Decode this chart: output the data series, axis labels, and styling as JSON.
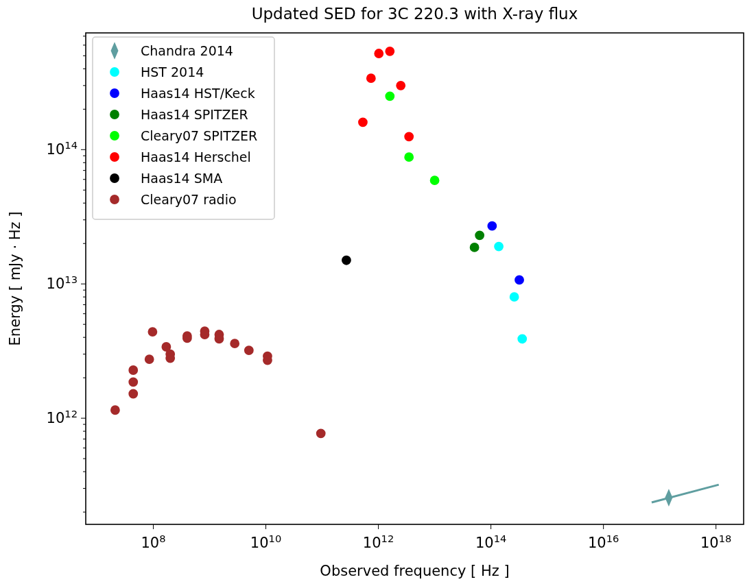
{
  "chart_data": {
    "type": "scatter",
    "title": "Updated SED for 3C 220.3 with X-ray flux",
    "xlabel": "Observed frequency [ Hz ]",
    "ylabel": "Energy [ mJy · Hz ]",
    "log": "xy",
    "grid": false,
    "legend": "top left",
    "xlim": [
      6300000.0,
      3.1e+18
    ],
    "ylim": [
      162000000000.0,
      740000000000000.0
    ],
    "xticks": [
      {
        "value": 100000000.0,
        "label": "10$^{8}$"
      },
      {
        "value": 10000000000.0,
        "label": "10$^{10}$"
      },
      {
        "value": 1000000000000.0,
        "label": "10$^{12}$"
      },
      {
        "value": 100000000000000.0,
        "label": "10$^{14}$"
      },
      {
        "value": 1e+16,
        "label": "10$^{16}$"
      },
      {
        "value": 1e+18,
        "label": "10$^{18}$"
      }
    ],
    "yticks": [
      {
        "value": 200000000000.0,
        "label": null
      },
      {
        "value": 300000000000.0,
        "label": null
      },
      {
        "value": 400000000000.0,
        "label": null
      },
      {
        "value": 500000000000.0,
        "label": null
      },
      {
        "value": 600000000000.0,
        "label": null
      },
      {
        "value": 700000000000.0,
        "label": null
      },
      {
        "value": 800000000000.0,
        "label": null
      },
      {
        "value": 900000000000.0,
        "label": null
      },
      {
        "value": 1000000000000.0,
        "label": "10$^{12}$"
      },
      {
        "value": 2000000000000.0,
        "label": null
      },
      {
        "value": 3000000000000.0,
        "label": null
      },
      {
        "value": 4000000000000.0,
        "label": null
      },
      {
        "value": 5000000000000.0,
        "label": null
      },
      {
        "value": 6000000000000.0,
        "label": null
      },
      {
        "value": 7000000000000.0,
        "label": null
      },
      {
        "value": 8000000000000.0,
        "label": null
      },
      {
        "value": 9000000000000.0,
        "label": null
      },
      {
        "value": 10000000000000.0,
        "label": "10$^{13}$"
      },
      {
        "value": 20000000000000.0,
        "label": null
      },
      {
        "value": 30000000000000.0,
        "label": null
      },
      {
        "value": 40000000000000.0,
        "label": null
      },
      {
        "value": 50000000000000.0,
        "label": null
      },
      {
        "value": 60000000000000.0,
        "label": null
      },
      {
        "value": 70000000000000.0,
        "label": null
      },
      {
        "value": 80000000000000.0,
        "label": null
      },
      {
        "value": 90000000000000.0,
        "label": null
      },
      {
        "value": 100000000000000.0,
        "label": "10$^{14}$"
      },
      {
        "value": 200000000000000.0,
        "label": null
      },
      {
        "value": 300000000000000.0,
        "label": null
      },
      {
        "value": 400000000000000.0,
        "label": null
      },
      {
        "value": 500000000000000.0,
        "label": null
      },
      {
        "value": 600000000000000.0,
        "label": null
      },
      {
        "value": 700000000000000.0,
        "label": null
      }
    ],
    "series": [
      {
        "type": "line",
        "color": "#5f9ea0",
        "line_style": "solid",
        "x": [
          7.2e+16,
          1.12e+18
        ],
        "values": [
          236000000000.0,
          320000000000.0
        ]
      },
      {
        "name": "Chandra 2014",
        "marker": "diamond",
        "color": "#5f9ea0",
        "x": [
          1.45e+17
        ],
        "values": [
          256000000000.0
        ]
      },
      {
        "name": "HST 2014",
        "marker": "circle",
        "color": "#00ffff",
        "x": [
          138000000000000.0,
          260000000000000.0,
          360000000000000.0
        ],
        "values": [
          19000000000000.0,
          8000000000000.0,
          3900000000000.0
        ]
      },
      {
        "name": "Haas14 HST/Keck",
        "marker": "circle",
        "color": "#0000ff",
        "x": [
          105000000000000.0,
          320000000000000.0
        ],
        "values": [
          27000000000000.0,
          10700000000000.0
        ]
      },
      {
        "name": "Haas14 SPITZER",
        "marker": "circle",
        "color": "#008000",
        "x": [
          63000000000000.0,
          51000000000000.0
        ],
        "values": [
          23000000000000.0,
          18700000000000.0
        ]
      },
      {
        "name": "Cleary07 SPITZER",
        "color": "#00ff00",
        "x": [
          1600000000000.0,
          3500000000000.0,
          10000000000000.0
        ],
        "values": [
          250000000000000.0,
          88000000000000.0,
          59000000000000.0
        ]
      },
      {
        "name": "Haas14 Herschel",
        "marker": "circle",
        "color": "#ff0000",
        "x": [
          1020000000000.0,
          1600000000000.0,
          740000000000.0,
          2500000000000.0,
          530000000000.0,
          3500000000000.0
        ],
        "values": [
          520000000000000.0,
          540000000000000.0,
          340000000000000.0,
          300000000000000.0,
          160000000000000.0,
          125000000000000.0
        ]
      },
      {
        "name": "Haas14 SMA",
        "marker": "circle",
        "color": "#000000",
        "x": [
          270000000000.0
        ],
        "values": [
          15000000000000.0
        ]
      },
      {
        "name": "Cleary07 radio",
        "marker": "circle",
        "color": "#a52a2a",
        "x": [
          21000000.0,
          44000000.0,
          44000000.0,
          44000000.0,
          85000000.0,
          97000000.0,
          170000000.0,
          200000000.0,
          200000000.0,
          400000000.0,
          400000000.0,
          820000000.0,
          820000000.0,
          1480000000.0,
          1480000000.0,
          2800000000.0,
          5000000000.0,
          10700000000.0,
          10700000000.0,
          95000000000.0
        ],
        "values": [
          1150000000000.0,
          2280000000000.0,
          1860000000000.0,
          1520000000000.0,
          2750000000000.0,
          4400000000000.0,
          3400000000000.0,
          3000000000000.0,
          2800000000000.0,
          4100000000000.0,
          3950000000000.0,
          4450000000000.0,
          4200000000000.0,
          4200000000000.0,
          3900000000000.0,
          3600000000000.0,
          3200000000000.0,
          2900000000000.0,
          2700000000000.0,
          770000000000.0
        ]
      }
    ]
  }
}
